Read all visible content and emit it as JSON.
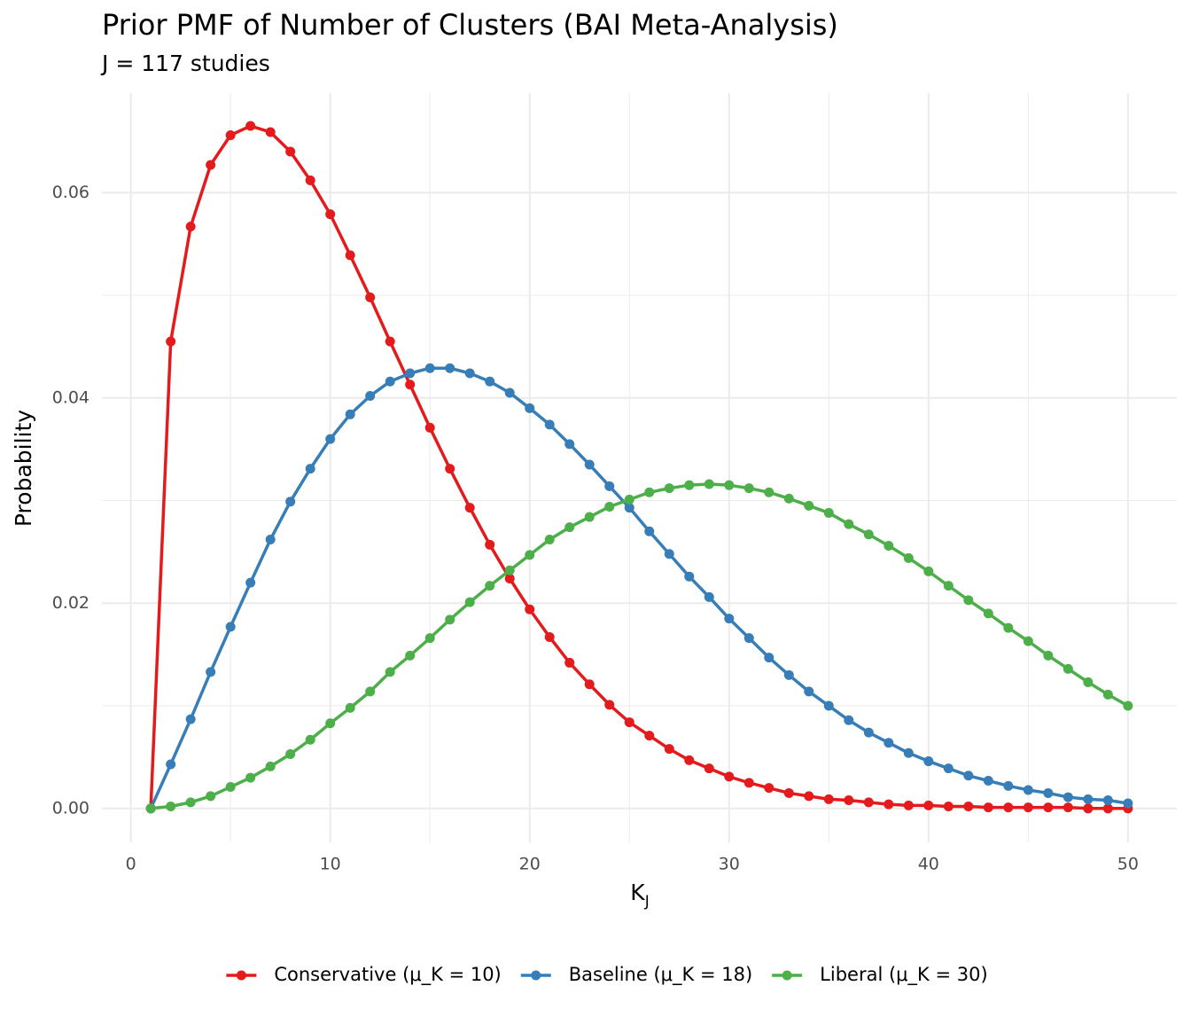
{
  "chart_data": {
    "type": "line",
    "title": "Prior PMF of Number of Clusters (BAI Meta-Analysis)",
    "subtitle": "J = 117 studies",
    "x_label": "K",
    "x_label_sub": "J",
    "y_label": "Probability",
    "x": [
      1,
      2,
      3,
      4,
      5,
      6,
      7,
      8,
      9,
      10,
      11,
      12,
      13,
      14,
      15,
      16,
      17,
      18,
      19,
      20,
      21,
      22,
      23,
      24,
      25,
      26,
      27,
      28,
      29,
      30,
      31,
      32,
      33,
      34,
      35,
      36,
      37,
      38,
      39,
      40,
      41,
      42,
      43,
      44,
      45,
      46,
      47,
      48,
      49,
      50
    ],
    "series": [
      {
        "name": "Conservative (μ_K = 10)",
        "color": "#e41a1c",
        "values": [
          0,
          0.0455,
          0.0567,
          0.0627,
          0.0656,
          0.0665,
          0.0659,
          0.064,
          0.0612,
          0.0579,
          0.0539,
          0.0498,
          0.0455,
          0.0413,
          0.0371,
          0.0331,
          0.0293,
          0.0257,
          0.0224,
          0.0194,
          0.0167,
          0.0142,
          0.0121,
          0.0101,
          0.0084,
          0.0071,
          0.0058,
          0.0047,
          0.0039,
          0.0031,
          0.0025,
          0.002,
          0.0015,
          0.0012,
          0.0009,
          0.0008,
          0.0006,
          0.0004,
          0.0003,
          0.0003,
          0.0002,
          0.0002,
          0.0001,
          0.0001,
          0.0001,
          0.0001,
          0.0001,
          0,
          0,
          0
        ]
      },
      {
        "name": "Baseline (μ_K = 18)",
        "color": "#377eb8",
        "values": [
          0,
          0.0043,
          0.0087,
          0.0133,
          0.0177,
          0.022,
          0.0262,
          0.0299,
          0.0331,
          0.036,
          0.0384,
          0.0402,
          0.0416,
          0.0424,
          0.0429,
          0.0429,
          0.0424,
          0.0416,
          0.0405,
          0.039,
          0.0374,
          0.0355,
          0.0335,
          0.0314,
          0.0293,
          0.027,
          0.0248,
          0.0226,
          0.0206,
          0.0185,
          0.0166,
          0.0147,
          0.013,
          0.0114,
          0.01,
          0.0086,
          0.0074,
          0.0064,
          0.0054,
          0.0046,
          0.0039,
          0.0032,
          0.0027,
          0.0022,
          0.0018,
          0.0015,
          0.0011,
          0.0009,
          0.0008,
          0.0005
        ]
      },
      {
        "name": "Liberal (μ_K = 30)",
        "color": "#4daf4a",
        "values": [
          0,
          0.0002,
          0.0006,
          0.0012,
          0.0021,
          0.003,
          0.0041,
          0.0053,
          0.0067,
          0.0083,
          0.0098,
          0.0114,
          0.0133,
          0.0149,
          0.0166,
          0.0184,
          0.0201,
          0.0217,
          0.0232,
          0.0247,
          0.0262,
          0.0274,
          0.0284,
          0.0294,
          0.0301,
          0.0308,
          0.0312,
          0.0315,
          0.0316,
          0.0315,
          0.0312,
          0.0308,
          0.0302,
          0.0295,
          0.0288,
          0.0277,
          0.0267,
          0.0256,
          0.0244,
          0.0231,
          0.0217,
          0.0203,
          0.019,
          0.0176,
          0.0163,
          0.0149,
          0.0136,
          0.0123,
          0.0111,
          0.01
        ]
      }
    ],
    "xlim": [
      -1.45,
      52.45
    ],
    "ylim": [
      -0.0033,
      0.0697
    ],
    "xticks": [
      0,
      10,
      20,
      30,
      40,
      50
    ],
    "yticks": [
      {
        "value": 0,
        "label": "0.00"
      },
      {
        "value": 0.02,
        "label": "0.02"
      },
      {
        "value": 0.04,
        "label": "0.04"
      },
      {
        "value": 0.06,
        "label": "0.06"
      }
    ],
    "xminorticks": [
      5,
      15,
      25,
      35,
      45
    ],
    "yminorticks": [
      0.01,
      0.03,
      0.05
    ],
    "grid": true,
    "legend": "bottom"
  }
}
